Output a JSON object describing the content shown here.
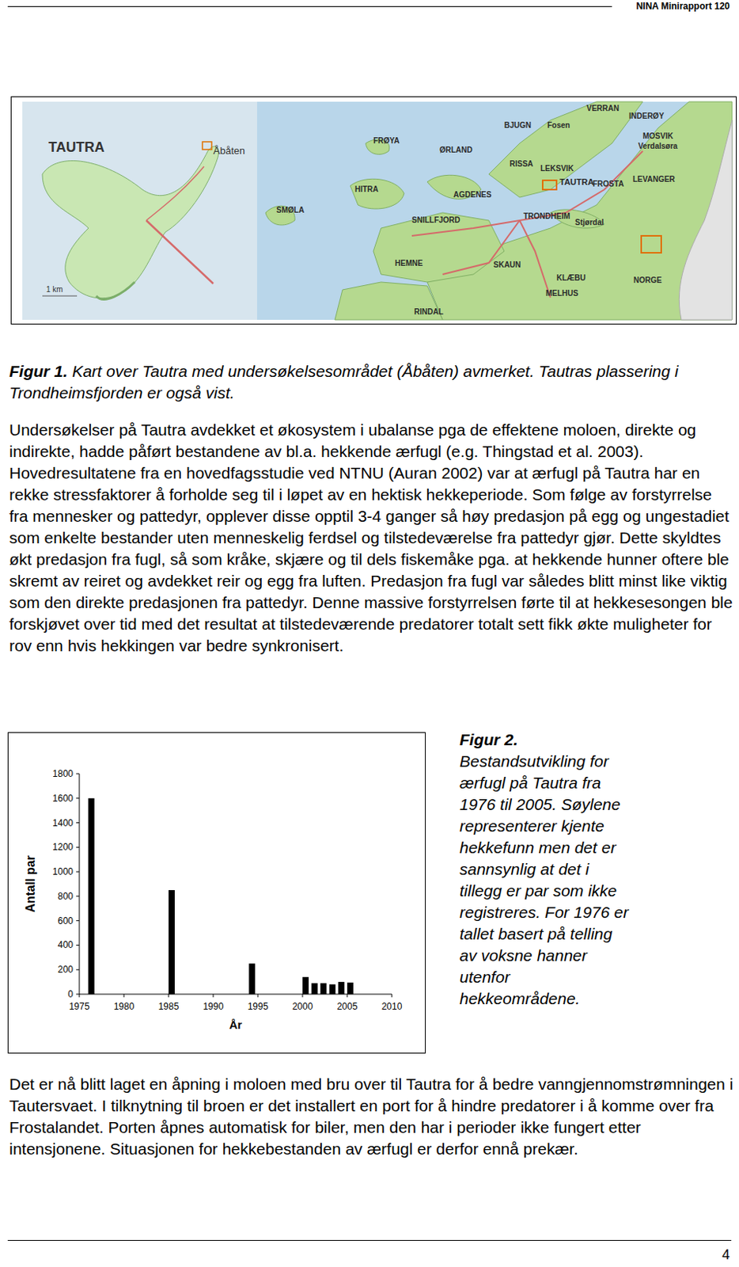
{
  "header": {
    "title": "NINA Minirapport 120"
  },
  "map": {
    "inset_labels": [
      "TAUTRA",
      "Åbåten",
      "1 km"
    ],
    "labels": [
      "VERRAN",
      "INDERØY",
      "BJUGN",
      "Fosen",
      "MOSVIK",
      "Verdalsøra",
      "FRØYA",
      "ØRLAND",
      "RISSA",
      "LEKSVIK",
      "TAUTRA",
      "FROSTA",
      "LEVANGER",
      "HITRA",
      "AGDENES",
      "SMØLA",
      "SNILLFJORD",
      "TRONDHEIM",
      "Stjørdal",
      "HEMNE",
      "SKAUN",
      "KLÆBU",
      "NORGE",
      "MELHUS",
      "RINDAL"
    ]
  },
  "figure1_caption": {
    "label": "Figur 1.",
    "text": "Kart over Tautra med undersøkelsesområdet (Åbåten) avmerket. Tautras plassering i Trondheimsfjorden er også vist."
  },
  "paragraphs": [
    "Undersøkelser på Tautra avdekket et økosystem i ubalanse pga de effektene moloen, direkte og indirekte, hadde påført bestandene av bl.a. hekkende ærfugl (e.g. Thingstad et al. 2003). Hovedresultatene fra en hovedfagsstudie ved NTNU (Auran 2002) var at ærfugl på Tautra har en rekke stressfaktorer å forholde seg til i løpet av en hektisk hekkeperiode. Som følge av forstyrrelse fra mennesker og pattedyr, opplever disse opptil 3-4 ganger så høy predasjon på egg og ungestadiet som enkelte bestander uten menneskelig ferdsel og tilstedeværelse fra pattedyr gjør. Dette skyldtes økt predasjon fra fugl, så som kråke, skjære og til dels fiskemåke pga. at hekkende hunner oftere ble skremt av reiret og avdekket reir og egg fra luften. Predasjon fra fugl var således blitt minst like viktig som den direkte predasjonen fra pattedyr. Denne massive forstyrrelsen førte til at hekkesesongen ble forskjøvet over tid med det resultat at tilstedeværende predatorer totalt sett fikk økte muligheter for rov enn hvis hekkingen var bedre synkronisert.",
    "Det er nå blitt laget en åpning i moloen med bru over til Tautra for å bedre vanngjennomstrømningen i Tautersvaet. I tilknytning til broen er det installert en port for å hindre predatorer i å komme over fra Frostalandet. Porten åpnes automatisk for biler, men den har i perioder ikke fungert etter intensjonene. Situasjonen for hekkebestanden av ærfugl er derfor ennå prekær."
  ],
  "chart_data": {
    "type": "bar",
    "x": [
      1976,
      1985,
      1994,
      2000,
      2001,
      2002,
      2003,
      2004,
      2005
    ],
    "values": [
      1600,
      850,
      250,
      140,
      90,
      90,
      80,
      100,
      95
    ],
    "color": "#000000",
    "xlabel": "År",
    "ylabel": "Antall par",
    "xlim": [
      1975,
      2010
    ],
    "xticks": [
      1975,
      1980,
      1985,
      1990,
      1995,
      2000,
      2005,
      2010
    ],
    "ylim": [
      0,
      1800
    ],
    "yticks": [
      0,
      200,
      400,
      600,
      800,
      1000,
      1200,
      1400,
      1600,
      1800
    ],
    "grid": false
  },
  "figure2_caption": {
    "label": "Figur 2.",
    "text": "Bestandsutvikling for ærfugl på Tautra fra 1976 til 2005. Søylene representerer kjente hekkefunn men det er sannsynlig at det i tillegg er par som ikke registreres. For 1976 er tallet basert på telling av voksne hanner utenfor hekkeområdene."
  },
  "page_number": 4
}
